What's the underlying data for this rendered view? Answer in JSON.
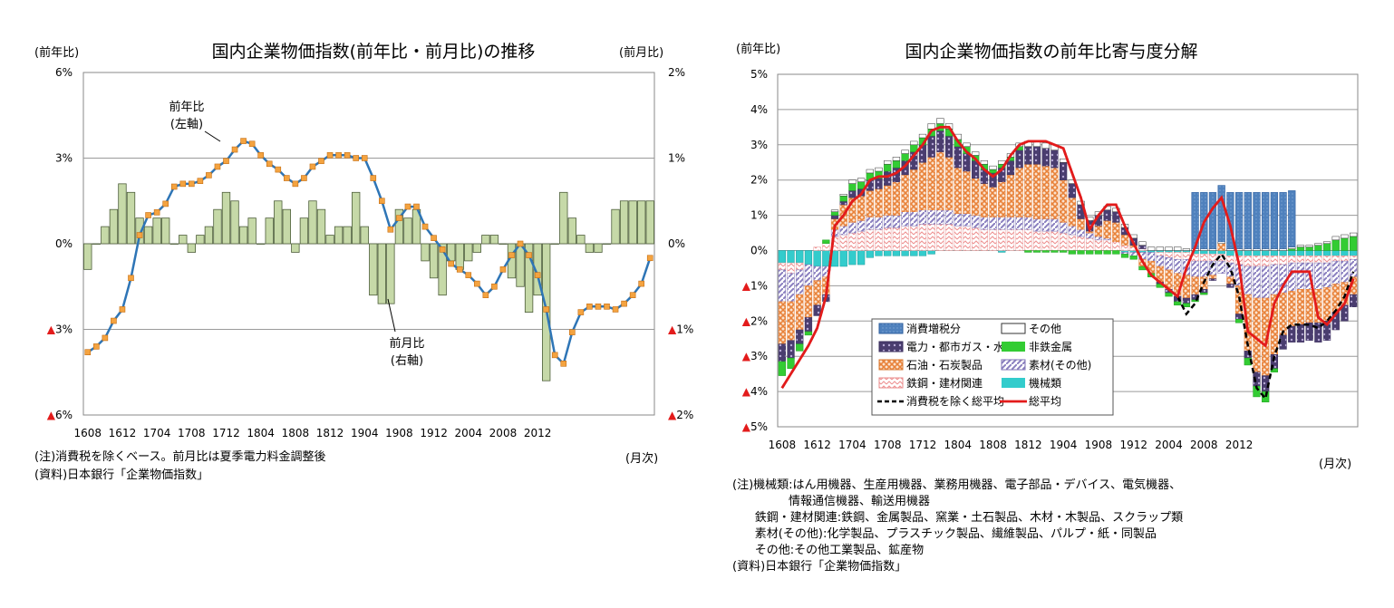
{
  "left": {
    "title": "国内企業物価指数(前年比・前月比)の推移",
    "left_unit": "(前年比)",
    "right_unit": "(前月比)",
    "x_unit": "(月次)",
    "y_left_ticks": [
      "6%",
      "3%",
      "0%",
      "▲3%",
      "▲6%"
    ],
    "y_right_ticks": [
      "2%",
      "1%",
      "0%",
      "▲1%",
      "▲2%"
    ],
    "x_ticks": [
      "1608",
      "1612",
      "1704",
      "1708",
      "1712",
      "1804",
      "1808",
      "1812",
      "1904",
      "1908",
      "1912",
      "2004",
      "2008",
      "2012"
    ],
    "annot_yoy": "前年比\n(左軸)",
    "annot_mom": "前月比\n(右軸)",
    "note1": "(注)消費税を除くベース。前月比は夏季電力料金調整後",
    "note2": "(資料)日本銀行「企業物価指数」"
  },
  "right": {
    "title": "国内企業物価指数の前年比寄与度分解",
    "y_unit": "(前年比)",
    "x_unit": "(月次)",
    "y_ticks": [
      "5%",
      "4%",
      "3%",
      "2%",
      "1%",
      "0%",
      "▲1%",
      "▲2%",
      "▲3%",
      "▲4%",
      "▲5%"
    ],
    "x_ticks": [
      "1608",
      "1612",
      "1704",
      "1708",
      "1712",
      "1804",
      "1808",
      "1812",
      "1904",
      "1908",
      "1912",
      "2004",
      "2008",
      "2012"
    ],
    "legend": [
      "消費増税分",
      "その他",
      "電力・都市ガス・水道",
      "非鉄金属",
      "石油・石炭製品",
      "素材(その他)",
      "鉄鋼・建材関連",
      "機械類",
      "消費税を除く総平均",
      "総平均"
    ],
    "notes": [
      "(注)機械類:はん用機器、生産用機器、業務用機器、電子部品・デバイス、電気機器、",
      "               情報通信機器、輸送用機器",
      "      鉄鋼・建材関連:鉄鋼、金属製品、窯業・土石製品、木材・木製品、スクラップ類",
      "      素材(その他):化学製品、プラスチック製品、繊維製品、パルプ・紙・同製品",
      "      その他:その他工業製品、鉱産物",
      "(資料)日本銀行「企業物価指数」"
    ]
  },
  "colors": {
    "bar_green": "#c6d9a8",
    "line_blue": "#2e75b6",
    "marker_orange": "#f4a340",
    "red": "#e31b1b",
    "blue_fill": "#4f81bd",
    "purple": "#5b4a80",
    "green_bright": "#33cc33",
    "orange_fill": "#f7a35c",
    "lavender": "#9b8fc6",
    "pink": "#f6b8b8",
    "cyan": "#33cccc"
  },
  "chart_data": [
    {
      "type": "bar+line",
      "title": "国内企業物価指数(前年比・前月比)の推移",
      "xlabel": "(月次)",
      "x_range": [
        "1608",
        "2102"
      ],
      "series": [
        {
          "name": "前年比",
          "axis": "left",
          "ylim": [
            -6,
            6
          ],
          "values": [
            -3.8,
            -3.6,
            -3.3,
            -2.7,
            -2.3,
            -1.2,
            0.3,
            1.0,
            1.1,
            1.4,
            2.0,
            2.1,
            2.1,
            2.2,
            2.4,
            2.7,
            2.9,
            3.3,
            3.6,
            3.5,
            3.1,
            2.8,
            2.6,
            2.3,
            2.1,
            2.3,
            2.7,
            2.9,
            3.1,
            3.1,
            3.1,
            3.0,
            3.0,
            2.3,
            1.5,
            0.5,
            0.9,
            1.3,
            1.3,
            0.6,
            0.2,
            -0.2,
            -0.7,
            -0.9,
            -1.1,
            -1.4,
            -1.8,
            -1.5,
            -0.9,
            -0.4,
            0.0,
            -0.4,
            -1.1,
            -2.3,
            -3.9,
            -4.2,
            -3.1,
            -2.4,
            -2.2,
            -2.2,
            -2.2,
            -2.3,
            -2.1,
            -1.8,
            -1.4,
            -0.5
          ]
        },
        {
          "name": "前月比",
          "axis": "right",
          "ylim": [
            -2,
            2
          ],
          "values": [
            -0.3,
            0.0,
            0.2,
            0.4,
            0.7,
            0.6,
            0.3,
            0.2,
            0.3,
            0.3,
            0.0,
            0.1,
            -0.1,
            0.1,
            0.2,
            0.4,
            0.6,
            0.5,
            0.2,
            0.3,
            0.0,
            0.3,
            0.5,
            0.4,
            -0.1,
            0.3,
            0.5,
            0.4,
            0.1,
            0.2,
            0.2,
            0.6,
            0.2,
            -0.6,
            -0.7,
            -0.7,
            0.4,
            0.3,
            0.4,
            -0.2,
            -0.4,
            -0.6,
            -0.2,
            -0.3,
            -0.2,
            -0.1,
            0.1,
            0.1,
            0.0,
            -0.4,
            -0.5,
            -0.8,
            -0.6,
            -1.6,
            0.0,
            0.6,
            0.3,
            0.1,
            -0.1,
            -0.1,
            0.0,
            0.4,
            0.5,
            0.5,
            0.5,
            0.5
          ]
        }
      ]
    },
    {
      "type": "stacked_bar+line",
      "title": "国内企業物価指数の前年比寄与度分解",
      "xlabel": "(月次)",
      "ylabel": "(前年比)",
      "ylim": [
        -5,
        5
      ],
      "x_range": [
        "1608",
        "2102"
      ],
      "components_order": [
        "機械類",
        "鉄鋼・建材関連",
        "素材(その他)",
        "石油・石炭製品",
        "電力・都市ガス・水道",
        "非鉄金属",
        "その他",
        "消費増税分"
      ],
      "components": {
        "機械類": [
          -0.35,
          -0.35,
          -0.35,
          -0.4,
          -0.45,
          -0.45,
          -0.45,
          -0.45,
          -0.4,
          -0.4,
          -0.2,
          -0.15,
          -0.15,
          -0.15,
          -0.15,
          -0.15,
          -0.15,
          -0.1,
          0.0,
          0.0,
          0.0,
          0.0,
          0.0,
          0.0,
          0.0,
          -0.05,
          0.0,
          0.0,
          0.0,
          0.0,
          0.0,
          0.0,
          0.0,
          0.0,
          0.0,
          0.0,
          0.0,
          0.0,
          0.0,
          -0.05,
          -0.05,
          -0.05,
          -0.05,
          -0.05,
          -0.05,
          -0.05,
          -0.05,
          -0.1,
          -0.1,
          -0.1,
          -0.1,
          -0.15,
          -0.15,
          -0.15,
          -0.15,
          -0.15,
          -0.15,
          -0.15,
          -0.15,
          -0.15,
          -0.15,
          -0.15,
          -0.15,
          -0.15,
          -0.15,
          -0.15
        ],
        "鉄鋼・建材関連": [
          -0.2,
          -0.3,
          -0.2,
          0.0,
          0.1,
          0.2,
          0.4,
          0.45,
          0.5,
          0.55,
          0.6,
          0.6,
          0.65,
          0.65,
          0.7,
          0.7,
          0.75,
          0.75,
          0.75,
          0.75,
          0.7,
          0.7,
          0.65,
          0.6,
          0.6,
          0.6,
          0.6,
          0.6,
          0.6,
          0.55,
          0.55,
          0.55,
          0.5,
          0.45,
          0.4,
          0.35,
          0.3,
          0.3,
          0.25,
          0.15,
          0.1,
          0.05,
          0.0,
          -0.1,
          -0.15,
          -0.2,
          -0.2,
          -0.2,
          -0.2,
          -0.2,
          -0.2,
          -0.2,
          -0.25,
          -0.3,
          -0.3,
          -0.3,
          -0.25,
          -0.25,
          -0.2,
          -0.2,
          -0.2,
          -0.2,
          -0.2,
          -0.15,
          -0.15,
          -0.1
        ],
        "素材(その他)": [
          -0.9,
          -0.8,
          -0.7,
          -0.6,
          -0.4,
          -0.3,
          0.2,
          0.25,
          0.3,
          0.3,
          0.35,
          0.35,
          0.35,
          0.35,
          0.4,
          0.4,
          0.4,
          0.4,
          0.4,
          0.4,
          0.35,
          0.35,
          0.35,
          0.35,
          0.35,
          0.35,
          0.35,
          0.35,
          0.35,
          0.35,
          0.35,
          0.35,
          0.3,
          0.25,
          0.2,
          0.15,
          0.1,
          0.05,
          0.0,
          -0.05,
          -0.1,
          -0.2,
          -0.25,
          -0.3,
          -0.35,
          -0.4,
          -0.45,
          -0.45,
          -0.45,
          -0.4,
          -0.35,
          -0.4,
          -0.6,
          -0.8,
          -0.9,
          -0.9,
          -0.85,
          -0.8,
          -0.8,
          -0.75,
          -0.75,
          -0.75,
          -0.7,
          -0.65,
          -0.6,
          -0.5
        ],
        "石油・石炭製品": [
          -1.2,
          -1.1,
          -1.0,
          -0.9,
          -0.7,
          -0.5,
          0.3,
          0.6,
          0.7,
          0.7,
          0.75,
          0.8,
          0.85,
          0.95,
          1.05,
          1.2,
          1.35,
          1.5,
          1.65,
          1.5,
          1.3,
          1.2,
          1.05,
          0.95,
          0.85,
          1.0,
          1.2,
          1.4,
          1.5,
          1.55,
          1.5,
          1.45,
          1.2,
          0.8,
          0.3,
          0.05,
          0.3,
          0.5,
          0.55,
          0.3,
          0.05,
          -0.2,
          -0.35,
          -0.45,
          -0.55,
          -0.65,
          -0.65,
          -0.5,
          -0.35,
          -0.1,
          0.2,
          -0.2,
          -0.8,
          -1.6,
          -2.1,
          -2.2,
          -1.7,
          -1.2,
          -1.0,
          -1.0,
          -0.95,
          -0.95,
          -0.95,
          -0.8,
          -0.65,
          -0.5
        ],
        "電力・都市ガス・水道": [
          -0.5,
          -0.5,
          -0.4,
          -0.4,
          -0.3,
          -0.2,
          0.1,
          0.1,
          0.2,
          0.2,
          0.3,
          0.3,
          0.4,
          0.4,
          0.4,
          0.5,
          0.5,
          0.6,
          0.6,
          0.6,
          0.6,
          0.5,
          0.5,
          0.4,
          0.4,
          0.4,
          0.4,
          0.5,
          0.5,
          0.5,
          0.5,
          0.5,
          0.5,
          0.4,
          0.4,
          0.3,
          0.3,
          0.3,
          0.3,
          0.2,
          0.2,
          0.1,
          0.0,
          -0.05,
          -0.1,
          -0.15,
          -0.15,
          -0.15,
          -0.1,
          -0.05,
          0.0,
          -0.1,
          -0.15,
          -0.2,
          -0.4,
          -0.45,
          -0.4,
          -0.4,
          -0.45,
          -0.5,
          -0.5,
          -0.55,
          -0.55,
          -0.5,
          -0.45,
          -0.35
        ],
        "非鉄金属": [
          -0.4,
          -0.3,
          -0.2,
          -0.1,
          0.0,
          0.1,
          0.1,
          0.15,
          0.2,
          0.2,
          0.2,
          0.2,
          0.2,
          0.2,
          0.2,
          0.2,
          0.2,
          0.2,
          0.2,
          0.2,
          0.2,
          0.2,
          0.15,
          0.15,
          0.1,
          0.1,
          0.1,
          0.1,
          -0.05,
          -0.05,
          -0.05,
          -0.05,
          -0.05,
          -0.1,
          -0.1,
          -0.1,
          -0.1,
          -0.1,
          -0.1,
          -0.1,
          -0.1,
          -0.1,
          -0.1,
          -0.1,
          -0.1,
          -0.1,
          -0.1,
          -0.05,
          -0.05,
          0.0,
          0.0,
          0.0,
          -0.1,
          -0.2,
          -0.3,
          -0.3,
          -0.1,
          0.0,
          0.05,
          0.1,
          0.1,
          0.15,
          0.2,
          0.3,
          0.35,
          0.4
        ],
        "その他": [
          0.0,
          0.0,
          0.0,
          0.0,
          0.0,
          0.0,
          0.05,
          0.05,
          0.1,
          0.1,
          0.1,
          0.1,
          0.1,
          0.1,
          0.1,
          0.1,
          0.1,
          0.15,
          0.15,
          0.15,
          0.15,
          0.1,
          0.1,
          0.1,
          0.1,
          0.1,
          0.1,
          0.1,
          0.15,
          0.15,
          0.15,
          0.15,
          0.1,
          0.1,
          0.1,
          0.1,
          0.1,
          0.1,
          0.1,
          0.1,
          0.1,
          0.1,
          0.1,
          0.1,
          0.1,
          0.1,
          0.05,
          0.05,
          0.05,
          0.05,
          0.05,
          0.05,
          0.05,
          0.05,
          0.05,
          0.05,
          0.05,
          0.05,
          0.05,
          0.05,
          0.05,
          0.05,
          0.05,
          0.1,
          0.1,
          0.1
        ],
        "消費増税分": [
          0,
          0,
          0,
          0,
          0,
          0,
          0,
          0,
          0,
          0,
          0,
          0,
          0,
          0,
          0,
          0,
          0,
          0,
          0,
          0,
          0,
          0,
          0,
          0,
          0,
          0,
          0,
          0,
          0,
          0,
          0,
          0,
          0,
          0,
          0,
          0,
          0,
          0,
          0,
          0,
          0,
          0,
          0,
          0,
          0,
          0,
          0,
          1.6,
          1.6,
          1.6,
          1.6,
          1.6,
          1.6,
          1.6,
          1.6,
          1.6,
          1.6,
          1.6,
          1.6,
          0,
          0,
          0,
          0,
          0,
          0,
          0
        ]
      },
      "lines": [
        {
          "name": "総平均",
          "values": [
            -3.9,
            -3.5,
            -3.1,
            -2.7,
            -2.2,
            -1.3,
            0.7,
            1.0,
            1.4,
            1.6,
            2.0,
            2.1,
            2.1,
            2.2,
            2.4,
            2.7,
            3.0,
            3.4,
            3.5,
            3.5,
            3.1,
            2.8,
            2.6,
            2.3,
            2.1,
            2.3,
            2.7,
            3.0,
            3.1,
            3.1,
            3.1,
            3.0,
            2.9,
            2.2,
            1.5,
            0.6,
            1.0,
            1.3,
            1.3,
            0.7,
            0.2,
            -0.3,
            -0.7,
            -0.9,
            -1.1,
            -1.3,
            -0.5,
            0.1,
            0.8,
            1.2,
            1.5,
            0.7,
            -0.4,
            -2.3,
            -2.5,
            -2.7,
            -1.5,
            -1.0,
            -0.6,
            -0.6,
            -0.6,
            -1.9,
            -2.1,
            -1.8,
            -1.5,
            -0.8
          ]
        },
        {
          "name": "消費税を除く総平均",
          "values": [
            -3.9,
            -3.5,
            -3.1,
            -2.7,
            -2.2,
            -1.3,
            0.7,
            1.0,
            1.4,
            1.6,
            2.0,
            2.1,
            2.1,
            2.2,
            2.4,
            2.7,
            3.0,
            3.4,
            3.5,
            3.5,
            3.1,
            2.8,
            2.6,
            2.3,
            2.1,
            2.3,
            2.7,
            3.0,
            3.1,
            3.1,
            3.1,
            3.0,
            2.9,
            2.2,
            1.5,
            0.6,
            1.0,
            1.3,
            1.3,
            0.7,
            0.2,
            -0.3,
            -0.7,
            -0.9,
            -1.1,
            -1.3,
            -1.8,
            -1.5,
            -0.9,
            -0.4,
            -0.1,
            -0.5,
            -1.3,
            -2.7,
            -3.9,
            -4.2,
            -3.0,
            -2.3,
            -2.1,
            -2.1,
            -2.1,
            -2.2,
            -2.0,
            -1.7,
            -1.3,
            -0.6
          ]
        }
      ]
    }
  ]
}
